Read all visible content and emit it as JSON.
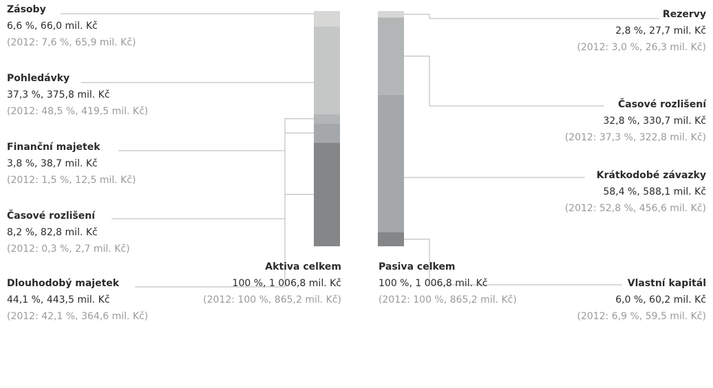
{
  "colors": {
    "line": "#b4b4b4",
    "text": "#2b2b2b",
    "prev_text": "#9a9a9a",
    "seg_light": "#d7d7d5",
    "seg_mid": "#c5c7c7",
    "seg_grey": "#b3b6b7",
    "seg_dark_grey": "#a5a8aa",
    "seg_darkest": "#858688"
  },
  "chart_data": [
    {
      "type": "bar",
      "stacked": true,
      "side": "left",
      "unit": "mil. Kč",
      "segments": [
        {
          "name": "Zásoby",
          "percent": 6.6,
          "value": 66.0,
          "percent_2012": 7.6,
          "value_2012": 65.9,
          "value_text": "6,6 %, 66,0 mil. Kč",
          "prev_text": "(2012: 7,6 %, 65,9 mil. Kč)",
          "color": "#d7d7d5"
        },
        {
          "name": "Pohledávky",
          "percent": 37.3,
          "value": 375.8,
          "percent_2012": 48.5,
          "value_2012": 419.5,
          "value_text": "37,3 %, 375,8 mil. Kč",
          "prev_text": "(2012: 48,5 %, 419,5 mil. Kč)",
          "color": "#c5c7c7"
        },
        {
          "name": "Finanční majetek",
          "percent": 3.8,
          "value": 38.7,
          "percent_2012": 1.5,
          "value_2012": 12.5,
          "value_text": "3,8 %, 38,7 mil. Kč",
          "prev_text": "(2012: 1,5 %, 12,5 mil. Kč)",
          "color": "#b3b6b7"
        },
        {
          "name": "Časové rozlišení",
          "percent": 8.2,
          "value": 82.8,
          "percent_2012": 0.3,
          "value_2012": 2.7,
          "value_text": "8,2 %, 82,8 mil. Kč",
          "prev_text": "(2012: 0,3 %, 2,7 mil. Kč)",
          "color": "#a5a8aa"
        },
        {
          "name": "Dlouhodobý majetek",
          "percent": 44.1,
          "value": 443.5,
          "percent_2012": 42.1,
          "value_2012": 364.6,
          "value_text": "44,1 %, 443,5 mil. Kč",
          "prev_text": "(2012: 42,1 %, 364,6 mil. Kč)",
          "color": "#858688"
        }
      ],
      "total": {
        "name": "Aktiva celkem",
        "percent": 100,
        "value": 1006.8,
        "percent_2012": 100,
        "value_2012": 865.2,
        "value_text": "100 %, 1 006,8 mil. Kč",
        "prev_text": "(2012: 100 %, 865,2 mil. Kč)"
      }
    },
    {
      "type": "bar",
      "stacked": true,
      "side": "right",
      "unit": "mil. Kč",
      "segments": [
        {
          "name": "Rezervy",
          "percent": 2.8,
          "value": 27.7,
          "percent_2012": 3.0,
          "value_2012": 26.3,
          "value_text": "2,8 %, 27,7 mil. Kč",
          "prev_text": "(2012: 3,0 %, 26,3 mil. Kč)",
          "color": "#d7d7d5"
        },
        {
          "name": "Časové rozlišení",
          "percent": 32.8,
          "value": 330.7,
          "percent_2012": 37.3,
          "value_2012": 322.8,
          "value_text": "32,8 %, 330,7 mil. Kč",
          "prev_text": "(2012: 37,3 %, 322,8 mil. Kč)",
          "color": "#b3b6b7"
        },
        {
          "name": "Krátkodobé závazky",
          "percent": 58.4,
          "value": 588.1,
          "percent_2012": 52.8,
          "value_2012": 456.6,
          "value_text": "58,4 %, 588,1 mil. Kč",
          "prev_text": "(2012: 52,8 %, 456,6 mil. Kč)",
          "color": "#a5a8aa"
        },
        {
          "name": "Vlastní kapitál",
          "percent": 6.0,
          "value": 60.2,
          "percent_2012": 6.9,
          "value_2012": 59.5,
          "value_text": "6,0 %, 60,2 mil. Kč",
          "prev_text": "(2012: 6,9 %, 59,5 mil. Kč)",
          "color": "#858688"
        }
      ],
      "total": {
        "name": "Pasiva celkem",
        "percent": 100,
        "value": 1006.8,
        "percent_2012": 100,
        "value_2012": 865.2,
        "value_text": "100 %, 1 006,8 mil. Kč",
        "prev_text": "(2012: 100 %, 865,2 mil. Kč)"
      }
    }
  ]
}
